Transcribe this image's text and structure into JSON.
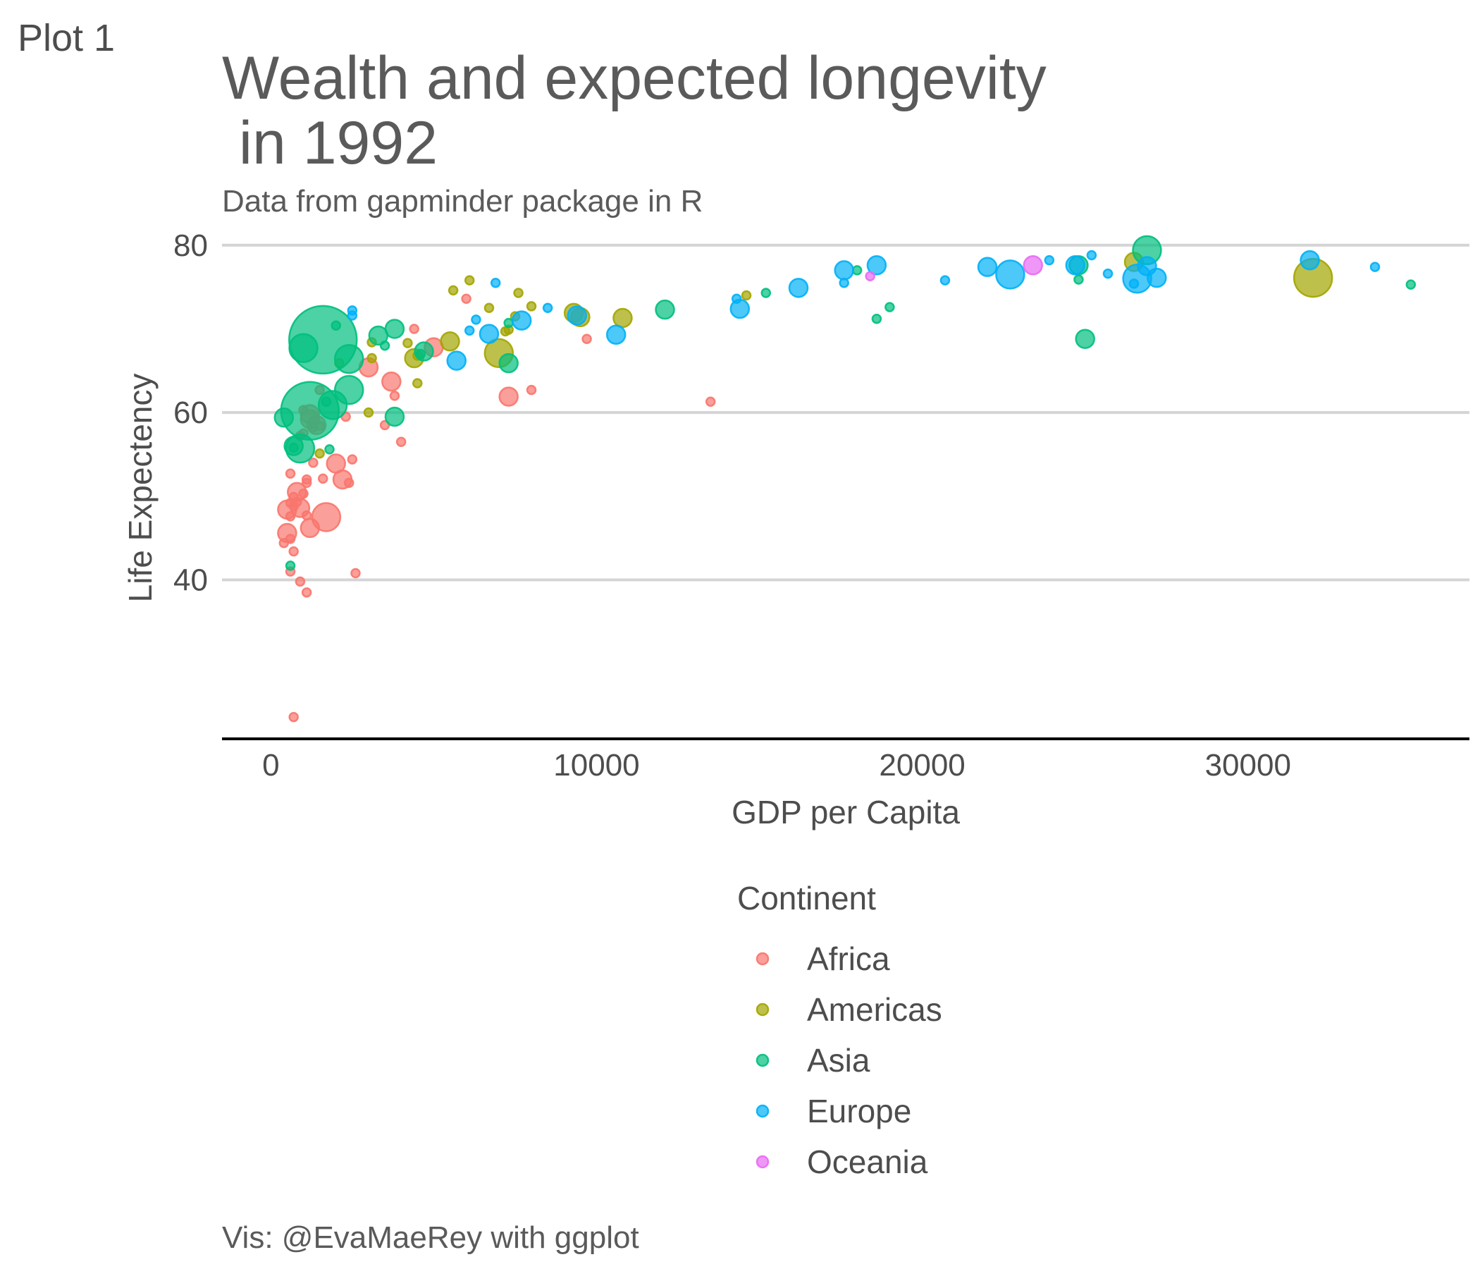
{
  "tag": "Plot 1",
  "chart_data": {
    "type": "scatter",
    "title_line1": "Wealth and expected longevity",
    "title_line2": " in 1992",
    "subtitle": "Data from gapminder package in R",
    "caption": "Vis: @EvaMaeRey with ggplot",
    "xlabel": "GDP per Capita",
    "ylabel": "Life Expectency",
    "xlim": [
      -1500,
      36800
    ],
    "ylim": [
      21,
      81.5
    ],
    "x_ticks": [
      {
        "value": 0,
        "label": "0"
      },
      {
        "value": 10000,
        "label": "10000"
      },
      {
        "value": 20000,
        "label": "20000"
      },
      {
        "value": 30000,
        "label": "30000"
      }
    ],
    "y_ticks": [
      {
        "value": 40,
        "label": "40"
      },
      {
        "value": 60,
        "label": "60"
      },
      {
        "value": 80,
        "label": "80"
      }
    ],
    "grid": "horizontal major only",
    "legend_title": "Continent",
    "legend_position": "bottom",
    "size_encoding": "population",
    "series": [
      {
        "name": "Africa",
        "color": "#F8766D",
        "points": [
          [
            1000,
            60.3,
            2
          ],
          [
            1200,
            59.8,
            3
          ],
          [
            1400,
            58.5,
            3
          ],
          [
            1000,
            57.5,
            2
          ],
          [
            900,
            57.2,
            2
          ],
          [
            1300,
            58.2,
            2
          ],
          [
            1500,
            58.4,
            2
          ],
          [
            2300,
            59.5,
            2
          ],
          [
            2500,
            54.4,
            2
          ],
          [
            2000,
            53.9,
            3
          ],
          [
            1300,
            54.0,
            2
          ],
          [
            1600,
            52.1,
            2
          ],
          [
            1100,
            52.0,
            2
          ],
          [
            1100,
            51.6,
            2
          ],
          [
            2200,
            52.0,
            3
          ],
          [
            2400,
            51.6,
            2
          ],
          [
            600,
            52.7,
            2
          ],
          [
            1000,
            50.3,
            2
          ],
          [
            800,
            50.5,
            3
          ],
          [
            700,
            49.9,
            2
          ],
          [
            800,
            49.3,
            2
          ],
          [
            600,
            49.2,
            2
          ],
          [
            700,
            48.8,
            2
          ],
          [
            900,
            48.6,
            3
          ],
          [
            500,
            48.4,
            3
          ],
          [
            600,
            47.6,
            2
          ],
          [
            1100,
            47.7,
            2
          ],
          [
            1700,
            47.5,
            4
          ],
          [
            1200,
            46.2,
            3
          ],
          [
            500,
            45.6,
            3
          ],
          [
            400,
            44.4,
            2
          ],
          [
            600,
            44.9,
            2
          ],
          [
            700,
            43.4,
            2
          ],
          [
            600,
            41.0,
            2
          ],
          [
            900,
            39.8,
            2
          ],
          [
            1100,
            38.5,
            2
          ],
          [
            2600,
            40.8,
            2
          ],
          [
            700,
            23.6,
            2
          ],
          [
            1500,
            62.7,
            2
          ],
          [
            3000,
            65.4,
            3
          ],
          [
            3700,
            63.7,
            3
          ],
          [
            3800,
            62.0,
            2
          ],
          [
            3500,
            58.5,
            2
          ],
          [
            4000,
            56.5,
            2
          ],
          [
            5000,
            67.8,
            3
          ],
          [
            4400,
            70.0,
            2
          ],
          [
            6000,
            73.6,
            2
          ],
          [
            7300,
            61.9,
            3
          ],
          [
            8000,
            62.7,
            2
          ],
          [
            9700,
            68.8,
            2
          ],
          [
            13500,
            61.3,
            2
          ],
          [
            1200,
            59.2,
            3
          ]
        ]
      },
      {
        "name": "Americas",
        "color": "#A3A500",
        "points": [
          [
            3000,
            60.0,
            2
          ],
          [
            1500,
            55.1,
            2
          ],
          [
            2100,
            65.9,
            2
          ],
          [
            3100,
            66.5,
            2
          ],
          [
            3100,
            68.4,
            2
          ],
          [
            4200,
            68.3,
            2
          ],
          [
            4500,
            63.5,
            2
          ],
          [
            4500,
            66.8,
            2
          ],
          [
            4400,
            66.5,
            3
          ],
          [
            5500,
            68.5,
            3
          ],
          [
            5600,
            74.6,
            2
          ],
          [
            6100,
            75.8,
            2
          ],
          [
            6700,
            72.5,
            2
          ],
          [
            7000,
            67.1,
            4
          ],
          [
            7200,
            69.7,
            2
          ],
          [
            7600,
            74.3,
            2
          ],
          [
            7500,
            71.5,
            2
          ],
          [
            7300,
            69.9,
            2
          ],
          [
            8000,
            72.7,
            2
          ],
          [
            9300,
            71.9,
            3
          ],
          [
            9500,
            71.4,
            3
          ],
          [
            10800,
            71.3,
            3
          ],
          [
            14600,
            74.0,
            2
          ],
          [
            26500,
            78.0,
            3
          ],
          [
            32000,
            76.1,
            5
          ]
        ]
      },
      {
        "name": "Asia",
        "color": "#00BF7D",
        "points": [
          [
            1600,
            68.7,
            8
          ],
          [
            1200,
            60.2,
            7
          ],
          [
            1000,
            67.7,
            4
          ],
          [
            1900,
            60.9,
            4
          ],
          [
            2400,
            62.7,
            4
          ],
          [
            2400,
            66.4,
            4
          ],
          [
            1700,
            61.3,
            2
          ],
          [
            2000,
            70.4,
            2
          ],
          [
            700,
            56.0,
            3
          ],
          [
            900,
            55.7,
            4
          ],
          [
            700,
            55.8,
            2
          ],
          [
            1800,
            55.6,
            2
          ],
          [
            600,
            41.7,
            2
          ],
          [
            400,
            59.4,
            3
          ],
          [
            3300,
            69.2,
            3
          ],
          [
            3500,
            68.0,
            2
          ],
          [
            3800,
            70.0,
            3
          ],
          [
            3800,
            59.5,
            3
          ],
          [
            4700,
            67.3,
            3
          ],
          [
            4600,
            67.0,
            2
          ],
          [
            7300,
            70.7,
            2
          ],
          [
            7300,
            65.9,
            3
          ],
          [
            12100,
            72.3,
            3
          ],
          [
            15200,
            74.3,
            2
          ],
          [
            18000,
            77.0,
            2
          ],
          [
            18600,
            71.2,
            2
          ],
          [
            19000,
            72.6,
            2
          ],
          [
            24800,
            77.6,
            3
          ],
          [
            24800,
            75.9,
            2
          ],
          [
            25000,
            68.8,
            3
          ],
          [
            26900,
            79.4,
            4
          ],
          [
            35000,
            75.3,
            2
          ]
        ]
      },
      {
        "name": "Europe",
        "color": "#00B0F6",
        "points": [
          [
            2500,
            71.6,
            2
          ],
          [
            2500,
            72.2,
            2
          ],
          [
            6100,
            69.8,
            2
          ],
          [
            6300,
            71.1,
            2
          ],
          [
            5700,
            66.2,
            3
          ],
          [
            6700,
            69.4,
            3
          ],
          [
            6900,
            75.5,
            2
          ],
          [
            7700,
            71.0,
            3
          ],
          [
            8500,
            72.5,
            2
          ],
          [
            9400,
            71.6,
            3
          ],
          [
            10600,
            69.3,
            3
          ],
          [
            14300,
            73.6,
            2
          ],
          [
            14400,
            72.4,
            3
          ],
          [
            16200,
            74.9,
            3
          ],
          [
            17600,
            77.0,
            3
          ],
          [
            17600,
            75.5,
            2
          ],
          [
            18600,
            77.6,
            3
          ],
          [
            20700,
            75.8,
            2
          ],
          [
            22000,
            77.4,
            3
          ],
          [
            22700,
            76.5,
            4
          ],
          [
            23900,
            78.2,
            2
          ],
          [
            24700,
            77.6,
            3
          ],
          [
            25200,
            78.8,
            2
          ],
          [
            25700,
            76.6,
            2
          ],
          [
            26600,
            76.0,
            4
          ],
          [
            26900,
            77.5,
            3
          ],
          [
            27200,
            76.1,
            3
          ],
          [
            26500,
            75.4,
            2
          ],
          [
            31900,
            78.2,
            3
          ],
          [
            33900,
            77.4,
            2
          ]
        ]
      },
      {
        "name": "Oceania",
        "color": "#E76BF3",
        "points": [
          [
            18400,
            76.3,
            2
          ],
          [
            23400,
            77.6,
            3
          ]
        ]
      }
    ]
  }
}
